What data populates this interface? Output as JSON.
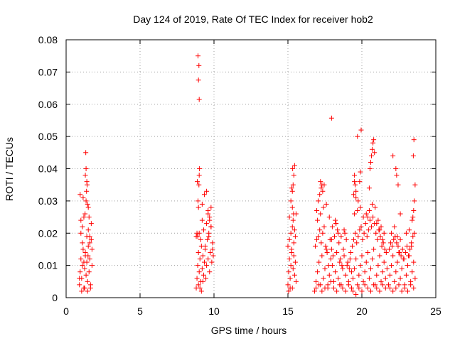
{
  "chart_data": {
    "type": "scatter",
    "title": "Day 124 of 2019, Rate Of TEC Index for receiver hob2",
    "xlabel": "GPS time / hours",
    "ylabel": "ROTI / TECUs",
    "xlim": [
      0,
      25
    ],
    "ylim": [
      0,
      0.08
    ],
    "xticks": [
      0,
      5,
      10,
      15,
      20,
      25
    ],
    "xtick_labels": [
      "0",
      "5",
      "10",
      "15",
      "20",
      "25"
    ],
    "yticks": [
      0,
      0.01,
      0.02,
      0.03,
      0.04,
      0.05,
      0.06,
      0.07,
      0.08
    ],
    "ytick_labels": [
      "0",
      "0.01",
      "0.02",
      "0.03",
      "0.04",
      "0.05",
      "0.06",
      "0.07",
      "0.08"
    ],
    "grid": true,
    "legend": "none",
    "marker": "+",
    "marker_color": "#ff0000",
    "series": [
      {
        "x": [
          0.9,
          0.95,
          1.0,
          1.05,
          1.1,
          1.15,
          1.2,
          1.25,
          1.3,
          1.35,
          1.4,
          1.45,
          1.5,
          1.55,
          1.6,
          1.65,
          1.7,
          1.75,
          1.0,
          1.1,
          1.2,
          1.3,
          1.4,
          1.5,
          1.6,
          1.7,
          1.05,
          1.25,
          1.45,
          1.65,
          1.15,
          1.35,
          1.55,
          1.75,
          0.95,
          1.0,
          1.3,
          1.35,
          1.33,
          1.4,
          1.42,
          1.38,
          1.45,
          1.5,
          1.2,
          1.6,
          1.1,
          0.9,
          1.28,
          1.48
        ],
        "y": [
          0.004,
          0.008,
          0.012,
          0.006,
          0.01,
          0.015,
          0.003,
          0.009,
          0.013,
          0.007,
          0.011,
          0.005,
          0.016,
          0.008,
          0.012,
          0.004,
          0.018,
          0.01,
          0.02,
          0.022,
          0.025,
          0.014,
          0.019,
          0.021,
          0.017,
          0.023,
          0.002,
          0.003,
          0.002,
          0.003,
          0.031,
          0.03,
          0.025,
          0.015,
          0.032,
          0.024,
          0.038,
          0.04,
          0.045,
          0.036,
          0.035,
          0.033,
          0.029,
          0.028,
          0.011,
          0.019,
          0.017,
          0.006,
          0.026,
          0.013
        ]
      },
      {
        "x": [
          8.8,
          8.85,
          8.9,
          8.95,
          9.0,
          9.05,
          9.1,
          9.15,
          9.2,
          9.25,
          9.3,
          9.35,
          9.4,
          9.45,
          9.5,
          9.55,
          9.6,
          9.65,
          9.7,
          9.75,
          9.8,
          9.85,
          9.9,
          9.95,
          8.9,
          9.0,
          9.1,
          9.2,
          9.3,
          9.4,
          9.5,
          9.6,
          9.7,
          9.8,
          8.95,
          9.05,
          9.15,
          9.25,
          8.8,
          8.85,
          8.92,
          8.98,
          9.0,
          9.02,
          8.95,
          9.6,
          9.7,
          9.8,
          9.5,
          9.35,
          9.2,
          9.9,
          9.65,
          8.87
        ],
        "y": [
          0.003,
          0.006,
          0.01,
          0.014,
          0.008,
          0.012,
          0.005,
          0.016,
          0.009,
          0.013,
          0.007,
          0.011,
          0.015,
          0.006,
          0.01,
          0.018,
          0.012,
          0.02,
          0.008,
          0.014,
          0.022,
          0.011,
          0.017,
          0.013,
          0.019,
          0.02,
          0.018,
          0.024,
          0.021,
          0.016,
          0.023,
          0.026,
          0.025,
          0.028,
          0.004,
          0.003,
          0.002,
          0.005,
          0.019,
          0.02,
          0.03,
          0.035,
          0.038,
          0.04,
          0.028,
          0.027,
          0.024,
          0.022,
          0.033,
          0.032,
          0.029,
          0.015,
          0.019,
          0.036
        ],
        "extra_x": [
          8.92,
          8.98,
          8.95,
          9.0
        ],
        "extra_y": [
          0.075,
          0.072,
          0.0675,
          0.0615
        ]
      },
      {
        "x": [
          15.0,
          15.05,
          15.1,
          15.15,
          15.2,
          15.25,
          15.3,
          15.35,
          15.4,
          15.45,
          15.5,
          15.55,
          15.0,
          15.1,
          15.2,
          15.3,
          15.4,
          15.5,
          15.05,
          15.15,
          15.25,
          15.35,
          15.45,
          15.55,
          15.1,
          15.2,
          15.3,
          15.25,
          15.35,
          15.4,
          15.45,
          15.3,
          15.32,
          15.38
        ],
        "y": [
          0.004,
          0.008,
          0.012,
          0.006,
          0.01,
          0.015,
          0.003,
          0.009,
          0.013,
          0.007,
          0.011,
          0.005,
          0.016,
          0.018,
          0.02,
          0.022,
          0.017,
          0.019,
          0.002,
          0.003,
          0.014,
          0.024,
          0.021,
          0.026,
          0.025,
          0.03,
          0.033,
          0.034,
          0.035,
          0.038,
          0.041,
          0.028,
          0.04,
          0.026
        ]
      },
      {
        "x": [
          16.8,
          16.9,
          17.0,
          17.1,
          17.2,
          17.3,
          17.4,
          17.5,
          17.6,
          17.7,
          17.8,
          17.9,
          18.0,
          18.1,
          18.2,
          18.3,
          18.4,
          18.5,
          18.6,
          18.7,
          18.8,
          18.9,
          19.0,
          19.1,
          19.2,
          19.3,
          16.85,
          16.95,
          17.05,
          17.15,
          17.25,
          17.35,
          17.45,
          17.55,
          17.65,
          17.75,
          17.85,
          17.95,
          18.05,
          18.15,
          18.25,
          18.35,
          18.45,
          18.55,
          18.65,
          18.75,
          18.85,
          18.95,
          19.05,
          19.15,
          19.25,
          16.9,
          17.1,
          17.3,
          17.5,
          17.7,
          17.9,
          18.1,
          18.3,
          18.5,
          18.7,
          18.9,
          19.1,
          19.3,
          17.0,
          17.2,
          17.4,
          16.95,
          17.05,
          17.15,
          17.25,
          17.35,
          17.45,
          17.2,
          17.3,
          18.2,
          18.25,
          18.4,
          18.6,
          17.6,
          18.0,
          17.8,
          18.8,
          17.95
        ],
        "y": [
          0.002,
          0.005,
          0.008,
          0.011,
          0.004,
          0.013,
          0.006,
          0.009,
          0.015,
          0.003,
          0.007,
          0.012,
          0.01,
          0.005,
          0.008,
          0.014,
          0.006,
          0.011,
          0.004,
          0.009,
          0.013,
          0.007,
          0.01,
          0.005,
          0.012,
          0.008,
          0.016,
          0.018,
          0.019,
          0.021,
          0.017,
          0.02,
          0.022,
          0.016,
          0.014,
          0.01,
          0.018,
          0.015,
          0.013,
          0.019,
          0.023,
          0.021,
          0.017,
          0.012,
          0.01,
          0.015,
          0.02,
          0.018,
          0.011,
          0.009,
          0.014,
          0.003,
          0.004,
          0.002,
          0.003,
          0.004,
          0.005,
          0.003,
          0.002,
          0.004,
          0.003,
          0.002,
          0.004,
          0.003,
          0.024,
          0.026,
          0.028,
          0.027,
          0.03,
          0.032,
          0.034,
          0.033,
          0.035,
          0.036,
          0.035,
          0.024,
          0.023,
          0.02,
          0.019,
          0.029,
          0.022,
          0.025,
          0.021,
          0.018
        ],
        "extra_x": [
          17.95
        ],
        "extra_y": [
          0.0557
        ]
      },
      {
        "x": [
          19.3,
          19.4,
          19.5,
          19.6,
          19.7,
          19.8,
          19.9,
          20.0,
          20.1,
          20.2,
          20.3,
          20.4,
          20.5,
          20.6,
          20.7,
          20.8,
          20.9,
          21.0,
          21.1,
          21.2,
          21.3,
          21.4,
          21.5,
          21.6,
          21.7,
          19.35,
          19.45,
          19.55,
          19.65,
          19.75,
          19.85,
          19.95,
          20.05,
          20.15,
          20.25,
          20.35,
          20.45,
          20.55,
          20.65,
          20.75,
          20.85,
          20.95,
          21.05,
          21.15,
          21.25,
          21.35,
          21.45,
          21.55,
          21.65,
          19.4,
          19.6,
          19.8,
          20.0,
          20.2,
          20.4,
          20.6,
          20.8,
          21.0,
          21.2,
          21.4,
          21.6,
          19.5,
          19.7,
          19.9,
          20.1,
          20.3,
          20.5,
          20.7,
          20.9,
          21.1,
          21.3,
          21.5,
          19.45,
          19.55,
          19.5,
          19.6,
          19.85,
          19.9,
          19.95,
          20.6,
          20.65,
          20.7,
          20.75,
          20.8,
          20.85,
          20.55,
          20.5,
          21.0,
          21.2,
          19.75,
          19.7,
          20.4,
          21.4,
          19.6,
          19.5
        ],
        "y": [
          0.003,
          0.006,
          0.009,
          0.012,
          0.004,
          0.007,
          0.01,
          0.013,
          0.005,
          0.008,
          0.011,
          0.014,
          0.006,
          0.009,
          0.012,
          0.015,
          0.004,
          0.007,
          0.01,
          0.013,
          0.005,
          0.008,
          0.011,
          0.006,
          0.009,
          0.016,
          0.018,
          0.02,
          0.017,
          0.019,
          0.021,
          0.022,
          0.018,
          0.02,
          0.023,
          0.019,
          0.021,
          0.024,
          0.022,
          0.025,
          0.023,
          0.02,
          0.018,
          0.021,
          0.019,
          0.016,
          0.017,
          0.015,
          0.014,
          0.002,
          0.001,
          0.003,
          0.002,
          0.004,
          0.003,
          0.002,
          0.004,
          0.003,
          0.002,
          0.004,
          0.003,
          0.026,
          0.027,
          0.028,
          0.025,
          0.026,
          0.027,
          0.029,
          0.028,
          0.024,
          0.022,
          0.02,
          0.032,
          0.035,
          0.038,
          0.031,
          0.036,
          0.039,
          0.052,
          0.042,
          0.044,
          0.046,
          0.048,
          0.049,
          0.045,
          0.04,
          0.034,
          0.023,
          0.021,
          0.03,
          0.05,
          0.025,
          0.018,
          0.033,
          0.036
        ]
      },
      {
        "x": [
          21.8,
          21.9,
          22.0,
          22.1,
          22.2,
          22.3,
          22.4,
          22.5,
          22.6,
          22.7,
          22.8,
          22.9,
          23.0,
          23.1,
          23.2,
          23.3,
          23.4,
          23.5,
          23.6,
          21.85,
          21.95,
          22.05,
          22.15,
          22.25,
          22.35,
          22.45,
          22.55,
          22.65,
          22.75,
          22.85,
          22.95,
          23.05,
          23.15,
          23.25,
          23.35,
          23.45,
          23.55,
          21.9,
          22.1,
          22.3,
          22.5,
          22.7,
          22.9,
          23.1,
          23.3,
          23.5,
          22.0,
          22.2,
          22.4,
          22.6,
          23.4,
          23.45,
          23.5,
          23.55,
          23.6,
          23.48,
          23.52,
          22.1,
          22.3,
          22.35,
          22.45,
          22.6,
          23.0,
          23.2,
          23.35
        ],
        "y": [
          0.004,
          0.007,
          0.01,
          0.013,
          0.005,
          0.008,
          0.011,
          0.014,
          0.006,
          0.009,
          0.012,
          0.004,
          0.007,
          0.01,
          0.013,
          0.005,
          0.008,
          0.011,
          0.006,
          0.015,
          0.017,
          0.016,
          0.018,
          0.019,
          0.017,
          0.016,
          0.014,
          0.013,
          0.015,
          0.012,
          0.014,
          0.016,
          0.013,
          0.015,
          0.017,
          0.019,
          0.02,
          0.003,
          0.002,
          0.003,
          0.004,
          0.002,
          0.003,
          0.002,
          0.004,
          0.003,
          0.02,
          0.022,
          0.019,
          0.018,
          0.024,
          0.025,
          0.027,
          0.03,
          0.035,
          0.044,
          0.049,
          0.044,
          0.04,
          0.038,
          0.035,
          0.026,
          0.02,
          0.021,
          0.016
        ]
      }
    ]
  }
}
